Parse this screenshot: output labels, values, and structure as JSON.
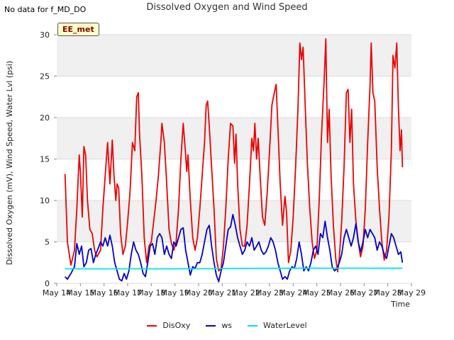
{
  "header": {
    "no_data_label": "No data for f_MD_DO",
    "site_badge": "EE_met"
  },
  "chart_data": {
    "type": "line",
    "title": "Dissolved Oxygen and Wind Speed",
    "xlabel": "Time",
    "ylabel": "Dissolved Oxygen (mV), Wind Speed, Water Lvl (psi)",
    "ylim": [
      0,
      30
    ],
    "yticks": [
      0,
      5,
      10,
      15,
      20,
      25,
      30
    ],
    "xlim": [
      14,
      29
    ],
    "xticks": [
      14,
      15,
      16,
      17,
      18,
      19,
      20,
      21,
      22,
      23,
      24,
      25,
      26,
      27,
      28,
      29
    ],
    "xtick_labels": [
      "May 14",
      "May 15",
      "May 16",
      "May 17",
      "May 18",
      "May 19",
      "May 20",
      "May 21",
      "May 22",
      "May 23",
      "May 24",
      "May 25",
      "May 26",
      "May 27",
      "May 28",
      "May 29"
    ],
    "grid": "horizontal bands",
    "legend_position": "bottom",
    "series": [
      {
        "name": "DisOxy",
        "color": "#ee0000",
        "points": [
          [
            14.35,
            13.2
          ],
          [
            14.45,
            5.0
          ],
          [
            14.6,
            2.2
          ],
          [
            14.75,
            4.0
          ],
          [
            14.85,
            9.0
          ],
          [
            14.95,
            15.5
          ],
          [
            15.0,
            13.5
          ],
          [
            15.08,
            8.0
          ],
          [
            15.15,
            16.5
          ],
          [
            15.22,
            15.5
          ],
          [
            15.3,
            10.0
          ],
          [
            15.4,
            6.5
          ],
          [
            15.5,
            6.0
          ],
          [
            15.6,
            4.0
          ],
          [
            15.7,
            3.2
          ],
          [
            15.85,
            4.0
          ],
          [
            15.95,
            9.0
          ],
          [
            16.05,
            13.0
          ],
          [
            16.15,
            17.0
          ],
          [
            16.25,
            12.0
          ],
          [
            16.35,
            17.3
          ],
          [
            16.42,
            13.0
          ],
          [
            16.5,
            10.0
          ],
          [
            16.55,
            12.0
          ],
          [
            16.62,
            11.5
          ],
          [
            16.7,
            6.0
          ],
          [
            16.8,
            3.5
          ],
          [
            16.9,
            4.5
          ],
          [
            17.0,
            7.5
          ],
          [
            17.1,
            11.0
          ],
          [
            17.2,
            17.0
          ],
          [
            17.3,
            16.0
          ],
          [
            17.38,
            22.5
          ],
          [
            17.45,
            23.0
          ],
          [
            17.5,
            18.0
          ],
          [
            17.6,
            13.0
          ],
          [
            17.7,
            5.5
          ],
          [
            17.8,
            2.5
          ],
          [
            17.9,
            4.5
          ],
          [
            18.0,
            5.0
          ],
          [
            18.1,
            7.5
          ],
          [
            18.2,
            10.0
          ],
          [
            18.3,
            13.0
          ],
          [
            18.4,
            17.0
          ],
          [
            18.45,
            19.3
          ],
          [
            18.55,
            17.0
          ],
          [
            18.65,
            12.0
          ],
          [
            18.75,
            6.5
          ],
          [
            18.85,
            4.8
          ],
          [
            18.95,
            4.0
          ],
          [
            19.05,
            5.0
          ],
          [
            19.15,
            9.0
          ],
          [
            19.25,
            15.0
          ],
          [
            19.35,
            19.3
          ],
          [
            19.45,
            15.5
          ],
          [
            19.5,
            13.5
          ],
          [
            19.55,
            15.5
          ],
          [
            19.65,
            10.0
          ],
          [
            19.75,
            5.5
          ],
          [
            19.85,
            4.0
          ],
          [
            19.95,
            5.5
          ],
          [
            20.05,
            9.0
          ],
          [
            20.15,
            13.0
          ],
          [
            20.25,
            17.0
          ],
          [
            20.32,
            21.5
          ],
          [
            20.38,
            22.0
          ],
          [
            20.45,
            19.0
          ],
          [
            20.55,
            14.0
          ],
          [
            20.65,
            9.0
          ],
          [
            20.75,
            3.0
          ],
          [
            20.85,
            1.5
          ],
          [
            20.95,
            1.8
          ],
          [
            21.05,
            4.5
          ],
          [
            21.15,
            9.0
          ],
          [
            21.25,
            15.0
          ],
          [
            21.35,
            19.3
          ],
          [
            21.45,
            19.0
          ],
          [
            21.52,
            14.5
          ],
          [
            21.58,
            18.0
          ],
          [
            21.65,
            12.0
          ],
          [
            21.75,
            6.5
          ],
          [
            21.85,
            4.5
          ],
          [
            21.95,
            4.5
          ],
          [
            22.05,
            7.0
          ],
          [
            22.15,
            12.0
          ],
          [
            22.25,
            17.5
          ],
          [
            22.32,
            16.0
          ],
          [
            22.38,
            19.3
          ],
          [
            22.45,
            15.0
          ],
          [
            22.52,
            17.5
          ],
          [
            22.6,
            13.0
          ],
          [
            22.7,
            8.0
          ],
          [
            22.8,
            7.0
          ],
          [
            22.9,
            11.0
          ],
          [
            23.0,
            16.0
          ],
          [
            23.1,
            21.5
          ],
          [
            23.2,
            23.0
          ],
          [
            23.28,
            24.0
          ],
          [
            23.35,
            19.0
          ],
          [
            23.45,
            12.0
          ],
          [
            23.55,
            7.0
          ],
          [
            23.65,
            10.5
          ],
          [
            23.72,
            8.5
          ],
          [
            23.8,
            2.5
          ],
          [
            23.9,
            4.0
          ],
          [
            24.0,
            8.0
          ],
          [
            24.1,
            14.0
          ],
          [
            24.2,
            21.0
          ],
          [
            24.28,
            29.0
          ],
          [
            24.35,
            27.0
          ],
          [
            24.42,
            28.5
          ],
          [
            24.5,
            22.0
          ],
          [
            24.6,
            14.5
          ],
          [
            24.7,
            9.0
          ],
          [
            24.8,
            5.0
          ],
          [
            24.9,
            3.0
          ],
          [
            25.0,
            4.0
          ],
          [
            25.1,
            10.0
          ],
          [
            25.2,
            18.0
          ],
          [
            25.3,
            24.0
          ],
          [
            25.38,
            29.5
          ],
          [
            25.45,
            17.0
          ],
          [
            25.52,
            21.0
          ],
          [
            25.6,
            13.0
          ],
          [
            25.7,
            7.0
          ],
          [
            25.8,
            3.0
          ],
          [
            25.88,
            1.4
          ],
          [
            25.95,
            3.0
          ],
          [
            26.05,
            7.5
          ],
          [
            26.15,
            14.0
          ],
          [
            26.25,
            23.0
          ],
          [
            26.32,
            23.4
          ],
          [
            26.4,
            17.0
          ],
          [
            26.47,
            21.0
          ],
          [
            26.55,
            12.0
          ],
          [
            26.65,
            7.5
          ],
          [
            26.75,
            5.0
          ],
          [
            26.85,
            3.2
          ],
          [
            26.95,
            4.5
          ],
          [
            27.05,
            9.0
          ],
          [
            27.15,
            17.0
          ],
          [
            27.25,
            24.0
          ],
          [
            27.3,
            29.0
          ],
          [
            27.37,
            23.0
          ],
          [
            27.45,
            22.0
          ],
          [
            27.55,
            14.0
          ],
          [
            27.65,
            9.0
          ],
          [
            27.75,
            5.0
          ],
          [
            27.85,
            2.8
          ],
          [
            27.95,
            4.0
          ],
          [
            28.05,
            8.0
          ],
          [
            28.15,
            16.0
          ],
          [
            28.22,
            27.5
          ],
          [
            28.3,
            26.0
          ],
          [
            28.38,
            29.0
          ],
          [
            28.45,
            21.0
          ],
          [
            28.52,
            16.0
          ],
          [
            28.58,
            18.5
          ],
          [
            28.62,
            14.0
          ]
        ]
      },
      {
        "name": "ws",
        "color": "#0000cc",
        "points": [
          [
            14.35,
            0.8
          ],
          [
            14.45,
            0.5
          ],
          [
            14.6,
            1.2
          ],
          [
            14.75,
            2.0
          ],
          [
            14.85,
            4.8
          ],
          [
            14.95,
            3.5
          ],
          [
            15.05,
            4.5
          ],
          [
            15.15,
            2.0
          ],
          [
            15.25,
            2.5
          ],
          [
            15.35,
            4.0
          ],
          [
            15.45,
            4.2
          ],
          [
            15.55,
            2.5
          ],
          [
            15.65,
            3.5
          ],
          [
            15.75,
            4.2
          ],
          [
            15.85,
            5.0
          ],
          [
            15.95,
            4.5
          ],
          [
            16.05,
            5.5
          ],
          [
            16.15,
            4.5
          ],
          [
            16.25,
            5.8
          ],
          [
            16.35,
            4.5
          ],
          [
            16.45,
            2.5
          ],
          [
            16.55,
            1.5
          ],
          [
            16.65,
            0.5
          ],
          [
            16.75,
            0.3
          ],
          [
            16.85,
            1.2
          ],
          [
            16.95,
            0.5
          ],
          [
            17.05,
            1.5
          ],
          [
            17.15,
            3.5
          ],
          [
            17.25,
            5.0
          ],
          [
            17.35,
            4.0
          ],
          [
            17.45,
            3.5
          ],
          [
            17.55,
            2.5
          ],
          [
            17.65,
            1.2
          ],
          [
            17.75,
            0.8
          ],
          [
            17.85,
            2.5
          ],
          [
            17.95,
            4.5
          ],
          [
            18.05,
            4.8
          ],
          [
            18.15,
            3.5
          ],
          [
            18.25,
            5.5
          ],
          [
            18.35,
            6.0
          ],
          [
            18.45,
            5.5
          ],
          [
            18.55,
            3.5
          ],
          [
            18.65,
            4.5
          ],
          [
            18.75,
            3.5
          ],
          [
            18.85,
            3.0
          ],
          [
            18.95,
            5.0
          ],
          [
            19.05,
            4.5
          ],
          [
            19.15,
            5.5
          ],
          [
            19.25,
            6.5
          ],
          [
            19.35,
            6.7
          ],
          [
            19.45,
            4.0
          ],
          [
            19.55,
            2.5
          ],
          [
            19.65,
            1.0
          ],
          [
            19.75,
            2.0
          ],
          [
            19.85,
            1.8
          ],
          [
            19.95,
            2.5
          ],
          [
            20.05,
            2.5
          ],
          [
            20.15,
            3.5
          ],
          [
            20.25,
            5.0
          ],
          [
            20.35,
            6.5
          ],
          [
            20.45,
            7.0
          ],
          [
            20.55,
            4.5
          ],
          [
            20.65,
            2.5
          ],
          [
            20.75,
            1.0
          ],
          [
            20.85,
            0.2
          ],
          [
            20.95,
            1.5
          ],
          [
            21.05,
            2.5
          ],
          [
            21.15,
            4.5
          ],
          [
            21.25,
            6.5
          ],
          [
            21.35,
            6.8
          ],
          [
            21.45,
            8.3
          ],
          [
            21.55,
            7.0
          ],
          [
            21.65,
            5.5
          ],
          [
            21.75,
            4.5
          ],
          [
            21.85,
            3.5
          ],
          [
            21.95,
            4.0
          ],
          [
            22.05,
            5.0
          ],
          [
            22.15,
            4.5
          ],
          [
            22.25,
            5.5
          ],
          [
            22.35,
            4.0
          ],
          [
            22.45,
            4.5
          ],
          [
            22.55,
            5.0
          ],
          [
            22.65,
            4.0
          ],
          [
            22.75,
            3.5
          ],
          [
            22.85,
            3.8
          ],
          [
            22.95,
            4.5
          ],
          [
            23.05,
            5.5
          ],
          [
            23.15,
            5.0
          ],
          [
            23.25,
            4.0
          ],
          [
            23.35,
            2.5
          ],
          [
            23.45,
            1.5
          ],
          [
            23.55,
            0.5
          ],
          [
            23.65,
            0.8
          ],
          [
            23.75,
            0.5
          ],
          [
            23.85,
            1.5
          ],
          [
            23.95,
            2.0
          ],
          [
            24.05,
            1.8
          ],
          [
            24.15,
            3.0
          ],
          [
            24.25,
            5.0
          ],
          [
            24.35,
            3.5
          ],
          [
            24.45,
            1.5
          ],
          [
            24.55,
            2.0
          ],
          [
            24.65,
            1.5
          ],
          [
            24.75,
            2.5
          ],
          [
            24.85,
            4.0
          ],
          [
            24.95,
            4.5
          ],
          [
            25.05,
            3.5
          ],
          [
            25.15,
            6.0
          ],
          [
            25.25,
            5.5
          ],
          [
            25.35,
            7.5
          ],
          [
            25.45,
            5.5
          ],
          [
            25.55,
            4.0
          ],
          [
            25.65,
            2.0
          ],
          [
            25.75,
            1.5
          ],
          [
            25.85,
            1.8
          ],
          [
            25.95,
            2.5
          ],
          [
            26.05,
            3.5
          ],
          [
            26.15,
            5.5
          ],
          [
            26.25,
            6.5
          ],
          [
            26.35,
            5.5
          ],
          [
            26.45,
            4.5
          ],
          [
            26.55,
            5.5
          ],
          [
            26.65,
            7.2
          ],
          [
            26.75,
            5.0
          ],
          [
            26.85,
            3.8
          ],
          [
            26.95,
            5.0
          ],
          [
            27.05,
            6.5
          ],
          [
            27.15,
            5.5
          ],
          [
            27.25,
            6.5
          ],
          [
            27.35,
            6.0
          ],
          [
            27.45,
            5.5
          ],
          [
            27.55,
            4.0
          ],
          [
            27.65,
            5.0
          ],
          [
            27.75,
            4.5
          ],
          [
            27.85,
            3.5
          ],
          [
            27.95,
            3.0
          ],
          [
            28.05,
            4.5
          ],
          [
            28.15,
            6.0
          ],
          [
            28.25,
            5.5
          ],
          [
            28.35,
            4.5
          ],
          [
            28.45,
            3.5
          ],
          [
            28.55,
            3.8
          ],
          [
            28.62,
            2.5
          ]
        ]
      },
      {
        "name": "WaterLevel",
        "color": "#00e5ee",
        "points": [
          [
            14.35,
            1.75
          ],
          [
            16.0,
            1.75
          ],
          [
            18.0,
            1.75
          ],
          [
            20.0,
            1.76
          ],
          [
            22.0,
            1.8
          ],
          [
            24.0,
            1.82
          ],
          [
            26.0,
            1.83
          ],
          [
            28.0,
            1.82
          ],
          [
            28.62,
            1.82
          ]
        ]
      }
    ]
  }
}
